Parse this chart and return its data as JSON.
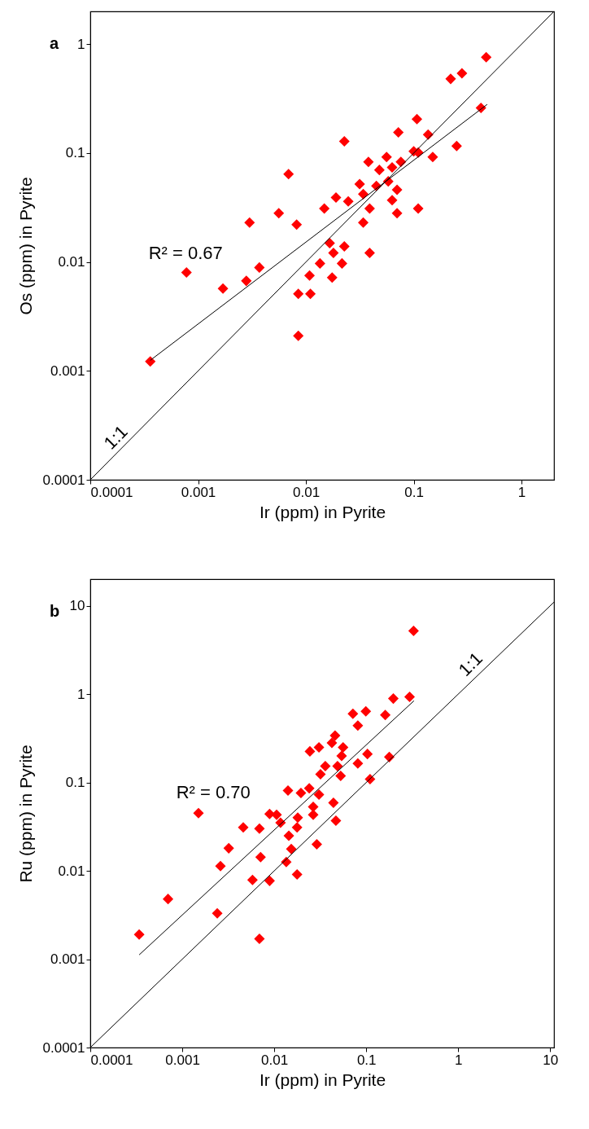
{
  "chart_data": [
    {
      "type": "scatter",
      "title": "a",
      "xlabel": "Ir (ppm) in Pyrite",
      "ylabel": "Os (ppm) in Pyrite",
      "log": "xy",
      "grid": false,
      "marker": "diamond",
      "xlim": [
        0.0001,
        2
      ],
      "ylim": [
        0.0001,
        2
      ],
      "xticks": [
        0.0001,
        0.001,
        0.01,
        0.1,
        1
      ],
      "yticks": [
        0.0001,
        0.001,
        0.01,
        0.1,
        1
      ],
      "series": [
        {
          "color": "#ff0000",
          "x": [
            0.00036,
            0.00078,
            0.0017,
            0.0028,
            0.003,
            0.0037,
            0.0056,
            0.0069,
            0.0082,
            0.0085,
            0.0085,
            0.011,
            0.0108,
            0.0135,
            0.0148,
            0.0166,
            0.018,
            0.0175,
            0.019,
            0.0216,
            0.0227,
            0.0227,
            0.0247,
            0.0315,
            0.034,
            0.034,
            0.038,
            0.039,
            0.039,
            0.045,
            0.048,
            0.056,
            0.058,
            0.063,
            0.063,
            0.07,
            0.07,
            0.072,
            0.076,
            0.1,
            0.107,
            0.11,
            0.11,
            0.136,
            0.15,
            0.25,
            0.22,
            0.28,
            0.47,
            0.42
          ],
          "values": [
            0.00122,
            0.008,
            0.0057,
            0.0067,
            0.023,
            0.0089,
            0.028,
            0.064,
            0.022,
            0.0051,
            0.0021,
            0.0051,
            0.0075,
            0.0097,
            0.031,
            0.0149,
            0.0121,
            0.0072,
            0.039,
            0.0097,
            0.0139,
            0.128,
            0.036,
            0.052,
            0.042,
            0.023,
            0.083,
            0.031,
            0.0121,
            0.05,
            0.07,
            0.092,
            0.055,
            0.074,
            0.037,
            0.046,
            0.028,
            0.155,
            0.083,
            0.104,
            0.205,
            0.101,
            0.031,
            0.148,
            0.092,
            0.116,
            0.48,
            0.54,
            0.76,
            0.26
          ]
        },
        {
          "type": "line",
          "name": "R² = 0.67",
          "marker": "none",
          "color": "#000000",
          "x": [
            0.00036,
            0.48
          ],
          "values": [
            0.00125,
            0.28
          ]
        },
        {
          "type": "line",
          "name": "1:1",
          "marker": "none",
          "color": "#000000",
          "x": [
            0.0001,
            2
          ],
          "values": [
            0.0001,
            2
          ]
        }
      ]
    },
    {
      "type": "scatter",
      "title": "b",
      "xlabel": "Ir (ppm) in Pyrite",
      "ylabel": "Ru (ppm) in Pyrite",
      "log": "xy",
      "grid": false,
      "marker": "diamond",
      "xlim": [
        0.0001,
        11
      ],
      "ylim": [
        0.0001,
        20
      ],
      "xticks": [
        0.0001,
        0.001,
        0.01,
        0.1,
        1,
        10
      ],
      "yticks": [
        0.0001,
        0.001,
        0.01,
        0.1,
        1,
        10
      ],
      "series": [
        {
          "color": "#ff0000",
          "x": [
            0.00034,
            0.0007,
            0.0015,
            0.0024,
            0.0026,
            0.0032,
            0.0046,
            0.0069,
            0.0071,
            0.0069,
            0.0058,
            0.0089,
            0.0089,
            0.0106,
            0.0117,
            0.0141,
            0.0144,
            0.0177,
            0.018,
            0.0135,
            0.0153,
            0.0177,
            0.0195,
            0.024,
            0.0265,
            0.0265,
            0.029,
            0.0318,
            0.0244,
            0.0306,
            0.0306,
            0.0359,
            0.0423,
            0.0458,
            0.044,
            0.0468,
            0.0487,
            0.0527,
            0.054,
            0.056,
            0.0716,
            0.081,
            0.081,
            0.099,
            0.103,
            0.11,
            0.161,
            0.178,
            0.197,
            0.296,
            0.327
          ],
          "values": [
            0.0019,
            0.0048,
            0.045,
            0.0033,
            0.0113,
            0.018,
            0.031,
            0.03,
            0.0143,
            0.0017,
            0.0079,
            0.0077,
            0.044,
            0.043,
            0.035,
            0.081,
            0.025,
            0.031,
            0.04,
            0.0126,
            0.0177,
            0.0091,
            0.076,
            0.086,
            0.053,
            0.043,
            0.02,
            0.124,
            0.225,
            0.25,
            0.073,
            0.153,
            0.28,
            0.34,
            0.059,
            0.037,
            0.153,
            0.119,
            0.2,
            0.25,
            0.6,
            0.44,
            0.164,
            0.64,
            0.21,
            0.109,
            0.58,
            0.194,
            0.89,
            0.93,
            5.2
          ]
        },
        {
          "type": "line",
          "name": "R² = 0.70",
          "marker": "none",
          "color": "#000000",
          "x": [
            0.00034,
            0.33
          ],
          "values": [
            0.00112,
            0.84
          ]
        },
        {
          "type": "line",
          "name": "1:1",
          "marker": "none",
          "color": "#000000",
          "x": [
            0.0001,
            11
          ],
          "values": [
            0.0001,
            11
          ]
        }
      ]
    }
  ]
}
